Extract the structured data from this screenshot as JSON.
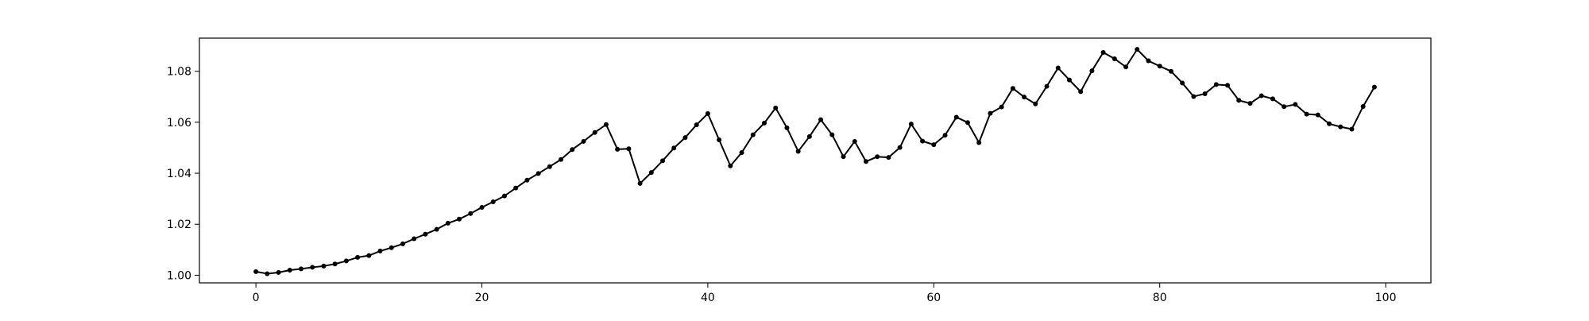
{
  "chart_data": {
    "type": "line",
    "title": "",
    "xlabel": "",
    "ylabel": "",
    "xlim": [
      -5,
      104
    ],
    "ylim": [
      0.997,
      1.093
    ],
    "x_ticks": [
      0,
      20,
      40,
      60,
      80,
      100
    ],
    "y_ticks": [
      1.0,
      1.02,
      1.04,
      1.06,
      1.08
    ],
    "x_tick_labels": [
      "0",
      "20",
      "40",
      "60",
      "80",
      "100"
    ],
    "y_tick_labels": [
      "1.00",
      "1.02",
      "1.04",
      "1.06",
      "1.08"
    ],
    "grid": false,
    "legend": false,
    "line_color": "#000000",
    "marker": "circle",
    "series": [
      {
        "x": [
          0,
          1,
          2,
          3,
          4,
          5,
          6,
          7,
          8,
          9,
          10,
          11,
          12,
          13,
          14,
          15,
          16,
          17,
          18,
          19,
          20,
          21,
          22,
          23,
          24,
          25,
          26,
          27,
          28,
          29,
          30,
          31,
          32,
          33,
          34,
          35,
          36,
          37,
          38,
          39,
          40,
          41,
          42,
          43,
          44,
          45,
          46,
          47,
          48,
          49,
          50,
          51,
          52,
          53,
          54,
          55,
          56,
          57,
          58,
          59,
          60,
          61,
          62,
          63,
          64,
          65,
          66,
          67,
          68,
          69,
          70,
          71,
          72,
          73,
          74,
          75,
          76,
          77,
          78,
          79,
          80,
          81,
          82,
          83,
          84,
          85,
          86,
          87,
          88,
          89,
          90,
          91,
          92,
          93,
          94,
          95,
          96,
          97,
          98,
          99
        ],
        "y": [
          1.0014,
          1.0006,
          1.0011,
          1.002,
          1.0025,
          1.0031,
          1.0036,
          1.0044,
          1.0056,
          1.007,
          1.0077,
          1.0095,
          1.0108,
          1.0123,
          1.0143,
          1.0161,
          1.018,
          1.0204,
          1.022,
          1.0242,
          1.0266,
          1.0288,
          1.0311,
          1.0342,
          1.0373,
          1.0399,
          1.0426,
          1.0454,
          1.0493,
          1.0525,
          1.056,
          1.0591,
          1.0494,
          1.0496,
          1.036,
          1.0403,
          1.0449,
          1.0499,
          1.054,
          1.059,
          1.0634,
          1.0531,
          1.0429,
          1.0481,
          1.0551,
          1.0597,
          1.0656,
          1.0578,
          1.0486,
          1.0544,
          1.061,
          1.0551,
          1.0465,
          1.0525,
          1.0446,
          1.0465,
          1.0462,
          1.0501,
          1.0593,
          1.0526,
          1.0512,
          1.0549,
          1.062,
          1.0599,
          1.052,
          1.0635,
          1.066,
          1.0733,
          1.0699,
          1.0672,
          1.0741,
          1.0813,
          1.0766,
          1.072,
          1.0802,
          1.0874,
          1.0849,
          1.0817,
          1.0886,
          1.0841,
          1.082,
          1.08,
          1.0754,
          1.0701,
          1.0712,
          1.0748,
          1.0745,
          1.0686,
          1.0674,
          1.0704,
          1.0692,
          1.0661,
          1.067,
          1.0632,
          1.0629,
          1.0594,
          1.0582,
          1.0573,
          1.0662,
          1.0738
        ]
      }
    ]
  }
}
